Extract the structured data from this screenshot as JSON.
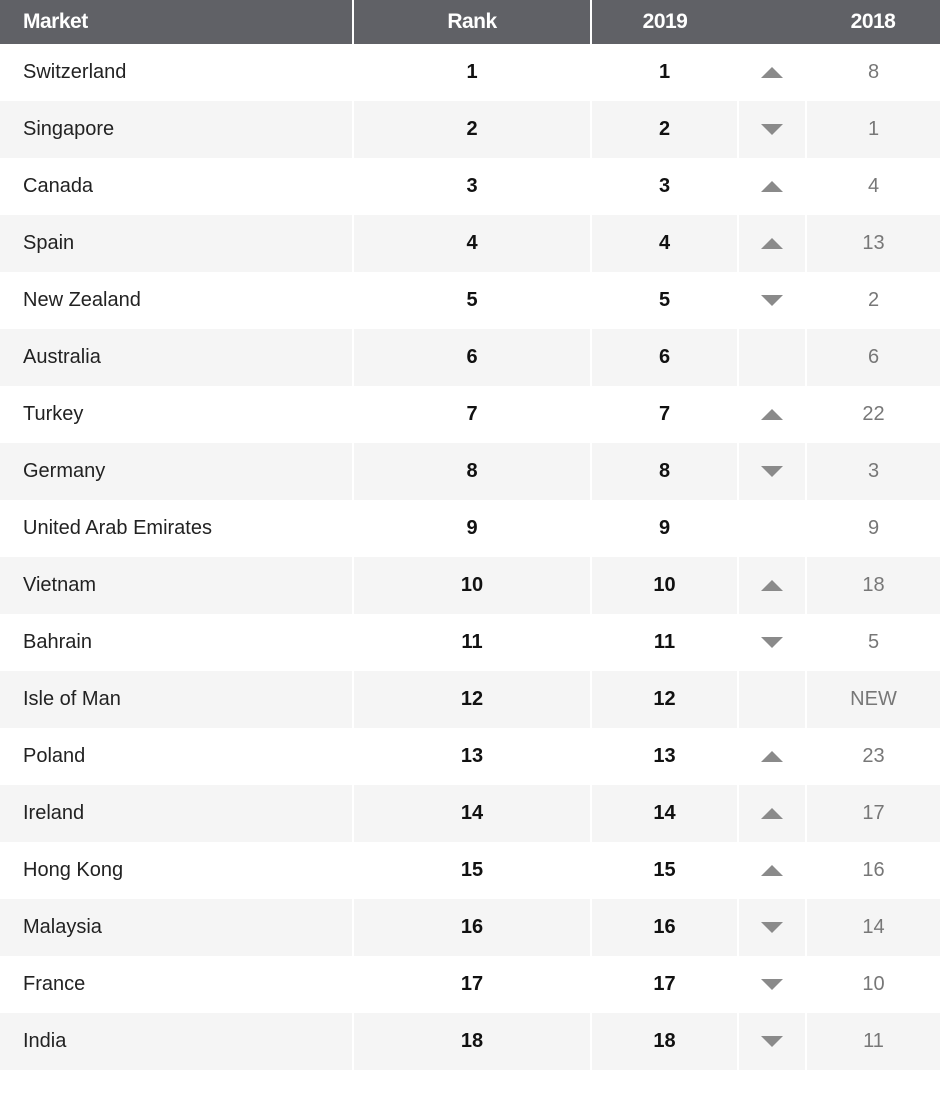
{
  "header": {
    "market": "Market",
    "rank": "Rank",
    "y2019": "2019",
    "y2018": "2018"
  },
  "rows": [
    {
      "market": "Switzerland",
      "rank": "1",
      "y2019": "1",
      "trend": "up",
      "y2018": "8"
    },
    {
      "market": "Singapore",
      "rank": "2",
      "y2019": "2",
      "trend": "down",
      "y2018": "1"
    },
    {
      "market": "Canada",
      "rank": "3",
      "y2019": "3",
      "trend": "up",
      "y2018": "4"
    },
    {
      "market": "Spain",
      "rank": "4",
      "y2019": "4",
      "trend": "up",
      "y2018": "13"
    },
    {
      "market": "New Zealand",
      "rank": "5",
      "y2019": "5",
      "trend": "down",
      "y2018": "2"
    },
    {
      "market": "Australia",
      "rank": "6",
      "y2019": "6",
      "trend": "none",
      "y2018": "6"
    },
    {
      "market": "Turkey",
      "rank": "7",
      "y2019": "7",
      "trend": "up",
      "y2018": "22"
    },
    {
      "market": "Germany",
      "rank": "8",
      "y2019": "8",
      "trend": "down",
      "y2018": "3"
    },
    {
      "market": "United Arab Emirates",
      "rank": "9",
      "y2019": "9",
      "trend": "none",
      "y2018": "9"
    },
    {
      "market": "Vietnam",
      "rank": "10",
      "y2019": "10",
      "trend": "up",
      "y2018": "18"
    },
    {
      "market": "Bahrain",
      "rank": "11",
      "y2019": "11",
      "trend": "down",
      "y2018": "5"
    },
    {
      "market": "Isle of Man",
      "rank": "12",
      "y2019": "12",
      "trend": "none",
      "y2018": "NEW"
    },
    {
      "market": "Poland",
      "rank": "13",
      "y2019": "13",
      "trend": "up",
      "y2018": "23"
    },
    {
      "market": "Ireland",
      "rank": "14",
      "y2019": "14",
      "trend": "up",
      "y2018": "17"
    },
    {
      "market": "Hong Kong",
      "rank": "15",
      "y2019": "15",
      "trend": "up",
      "y2018": "16"
    },
    {
      "market": "Malaysia",
      "rank": "16",
      "y2019": "16",
      "trend": "down",
      "y2018": "14"
    },
    {
      "market": "France",
      "rank": "17",
      "y2019": "17",
      "trend": "down",
      "y2018": "10"
    },
    {
      "market": "India",
      "rank": "18",
      "y2019": "18",
      "trend": "down",
      "y2018": "11"
    }
  ]
}
